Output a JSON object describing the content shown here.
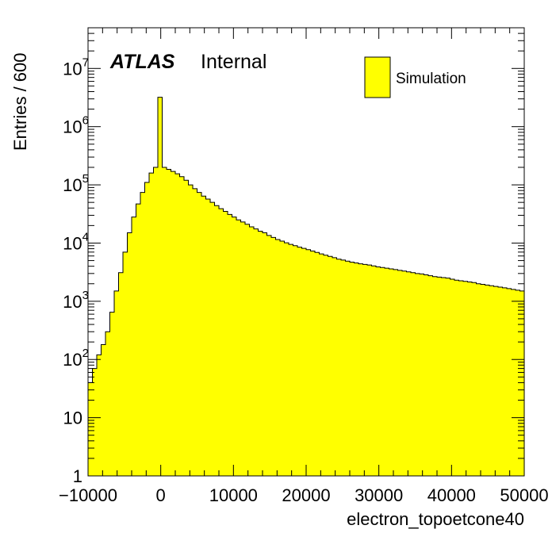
{
  "chart_data": {
    "type": "bar",
    "histogram": true,
    "xlabel": "electron_topoetcone40",
    "ylabel": "Entries / 600",
    "xlim": [
      -10000,
      50000
    ],
    "ylim": [
      1,
      50000000
    ],
    "log_y": true,
    "grid": false,
    "bin_width": 600,
    "fill_color": "#ffff00",
    "line_color": "#000000",
    "atlas_label": "ATLAS",
    "atlas_suffix": "Internal",
    "legend": {
      "position": "top-right",
      "entries": [
        "Simulation"
      ]
    },
    "x_ticks": [
      {
        "value": -10000,
        "label": "−10000"
      },
      {
        "value": 0,
        "label": "0"
      },
      {
        "value": 10000,
        "label": "10000"
      },
      {
        "value": 20000,
        "label": "20000"
      },
      {
        "value": 30000,
        "label": "30000"
      },
      {
        "value": 40000,
        "label": "40000"
      },
      {
        "value": 50000,
        "label": "50000"
      }
    ],
    "y_ticks": [
      {
        "value": 1,
        "base": "1",
        "exp": ""
      },
      {
        "value": 10,
        "base": "10",
        "exp": ""
      },
      {
        "value": 100,
        "base": "10",
        "exp": "2"
      },
      {
        "value": 1000,
        "base": "10",
        "exp": "3"
      },
      {
        "value": 10000,
        "base": "10",
        "exp": "4"
      },
      {
        "value": 100000,
        "base": "10",
        "exp": "5"
      },
      {
        "value": 1000000,
        "base": "10",
        "exp": "6"
      },
      {
        "value": 10000000,
        "base": "10",
        "exp": "7"
      }
    ],
    "bin_edges_start": -10000,
    "values": [
      40,
      70,
      120,
      180,
      300,
      650,
      1500,
      3100,
      7000,
      15000,
      28000,
      47000,
      74000,
      110000,
      160000,
      200000,
      3200000,
      200000,
      185000,
      170000,
      155000,
      138000,
      120000,
      100000,
      86000,
      74000,
      64000,
      57000,
      50000,
      44000,
      39000,
      35000,
      31000,
      28000,
      25000,
      23000,
      21000,
      19000,
      17500,
      16000,
      15000,
      13500,
      12500,
      11500,
      10800,
      10100,
      9500,
      9000,
      8500,
      8100,
      7700,
      7300,
      6900,
      6500,
      6200,
      5900,
      5600,
      5300,
      5100,
      4900,
      4700,
      4550,
      4400,
      4300,
      4200,
      4050,
      3900,
      3800,
      3700,
      3600,
      3500,
      3400,
      3300,
      3200,
      3100,
      3000,
      2950,
      2850,
      2750,
      2650,
      2600,
      2550,
      2500,
      2400,
      2300,
      2250,
      2200,
      2150,
      2100,
      2000,
      1950,
      1900,
      1850,
      1800,
      1750,
      1700,
      1650,
      1600,
      1550,
      1500
    ]
  }
}
